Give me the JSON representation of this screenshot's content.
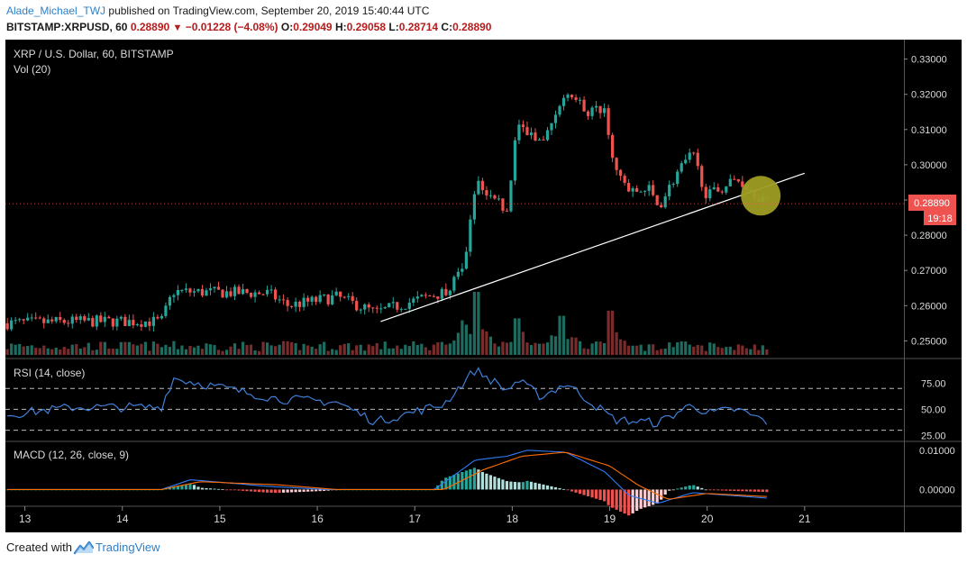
{
  "header": {
    "author": "Alade_Michael_TWJ",
    "published_text": "published on TradingView.com, September 20, 2019 15:40:44 UTC",
    "symbol": "BITSTAMP:XRPUSD, 60",
    "last": "0.28890",
    "change": "−0.01228 (−4.08%)",
    "o_label": "O:",
    "o": "0.29049",
    "h_label": "H:",
    "h": "0.29058",
    "l_label": "L:",
    "l": "0.28714",
    "c_label": "C:",
    "c": "0.28890"
  },
  "footer": {
    "created_with": "Created with",
    "brand": "TradingView"
  },
  "colors": {
    "background": "#000000",
    "up": "#26a69a",
    "down": "#ef5350",
    "vol_up": "#1e6b5f",
    "vol_down": "#7a2c2c",
    "rsi": "#3f7fd8",
    "macd": "#2e7cf6",
    "signal": "#ff6d00",
    "hist_up_strong": "#26a69a",
    "hist_up_weak": "#b2dfdb",
    "hist_down_strong": "#ef5350",
    "hist_down_weak": "#ffcdd2",
    "trendline": "#ffffff",
    "marker": "#9e9d24",
    "price_label": "#ef5350"
  },
  "chart_data": [
    {
      "type": "candlestick",
      "title": "XRP / U.S. Dollar, 60, BITSTAMP",
      "subtitle": "Vol (20)",
      "y_tick_labels": [
        "0.33000",
        "0.32000",
        "0.31000",
        "0.30000",
        "0.29000",
        "0.28000",
        "0.27000",
        "0.26000",
        "0.25000"
      ],
      "y_ticks": [
        0.33,
        0.32,
        0.31,
        0.3,
        0.29,
        0.28,
        0.27,
        0.26,
        0.25
      ],
      "ylim": [
        0.2455,
        0.3345
      ],
      "x_tick_labels": [
        "13",
        "14",
        "15",
        "16",
        "17",
        "18",
        "19",
        "20",
        "21"
      ],
      "x_ticks": [
        13,
        14,
        15,
        16,
        17,
        18,
        19,
        20,
        21
      ],
      "xlim": [
        12.8,
        22.0
      ],
      "last_price_label": "0.28890",
      "countdown_label": "19:18",
      "key_points": [
        {
          "x": 12.82,
          "close": 0.255
        },
        {
          "x": 13.5,
          "close": 0.2555
        },
        {
          "x": 14.4,
          "close": 0.2555
        },
        {
          "x": 14.52,
          "close": 0.264
        },
        {
          "x": 15.5,
          "close": 0.2635
        },
        {
          "x": 15.7,
          "close": 0.26
        },
        {
          "x": 16.2,
          "close": 0.2625
        },
        {
          "x": 16.6,
          "close": 0.258
        },
        {
          "x": 17.3,
          "close": 0.264
        },
        {
          "x": 17.5,
          "close": 0.27
        },
        {
          "x": 17.62,
          "close": 0.295
        },
        {
          "x": 17.95,
          "close": 0.287
        },
        {
          "x": 18.05,
          "close": 0.312
        },
        {
          "x": 18.3,
          "close": 0.305
        },
        {
          "x": 18.55,
          "close": 0.322
        },
        {
          "x": 18.75,
          "close": 0.315
        },
        {
          "x": 18.95,
          "close": 0.316
        },
        {
          "x": 19.05,
          "close": 0.299
        },
        {
          "x": 19.2,
          "close": 0.292
        },
        {
          "x": 19.4,
          "close": 0.293
        },
        {
          "x": 19.5,
          "close": 0.288
        },
        {
          "x": 19.7,
          "close": 0.298
        },
        {
          "x": 19.85,
          "close": 0.303
        },
        {
          "x": 20.0,
          "close": 0.291
        },
        {
          "x": 20.3,
          "close": 0.296
        },
        {
          "x": 20.45,
          "close": 0.293
        },
        {
          "x": 20.62,
          "close": 0.2889
        }
      ],
      "trendline": {
        "x1": 16.65,
        "y1": 0.2555,
        "x2": 21.0,
        "y2": 0.2976
      },
      "highlight_marker": {
        "x": 20.55,
        "y": 0.2912
      },
      "volume_spikes": [
        {
          "x": 17.48,
          "value": 0.55
        },
        {
          "x": 17.62,
          "value": 1.0
        },
        {
          "x": 18.05,
          "value": 0.58
        },
        {
          "x": 18.52,
          "value": 0.62
        },
        {
          "x": 19.02,
          "value": 0.7
        }
      ]
    },
    {
      "type": "line",
      "title": "RSI (14, close)",
      "y_tick_labels": [
        "75.00",
        "50.00",
        "25.00"
      ],
      "y_ticks": [
        75,
        50,
        25
      ],
      "ylim": [
        21,
        97
      ],
      "levels": [
        70,
        50,
        30
      ],
      "key_points": [
        {
          "x": 12.82,
          "y": 45
        },
        {
          "x": 13.5,
          "y": 52
        },
        {
          "x": 14.4,
          "y": 52
        },
        {
          "x": 14.52,
          "y": 80
        },
        {
          "x": 15.6,
          "y": 60
        },
        {
          "x": 16.2,
          "y": 57
        },
        {
          "x": 16.6,
          "y": 38
        },
        {
          "x": 17.3,
          "y": 55
        },
        {
          "x": 17.62,
          "y": 88
        },
        {
          "x": 17.95,
          "y": 68
        },
        {
          "x": 18.05,
          "y": 78
        },
        {
          "x": 18.3,
          "y": 62
        },
        {
          "x": 18.55,
          "y": 75
        },
        {
          "x": 19.05,
          "y": 40
        },
        {
          "x": 19.5,
          "y": 37
        },
        {
          "x": 19.85,
          "y": 55
        },
        {
          "x": 20.0,
          "y": 46
        },
        {
          "x": 20.3,
          "y": 50
        },
        {
          "x": 20.62,
          "y": 38
        }
      ]
    },
    {
      "type": "line",
      "title": "MACD (12, 26, close, 9)",
      "y_tick_labels": [
        "0.01000",
        "0.00000"
      ],
      "y_ticks": [
        0.01,
        0.0
      ],
      "ylim": [
        -0.0038,
        0.0118
      ],
      "series": [
        {
          "key": "macd",
          "points": [
            {
              "x": 12.82,
              "y": 0.0
            },
            {
              "x": 14.4,
              "y": 0.0
            },
            {
              "x": 14.7,
              "y": 0.0025
            },
            {
              "x": 15.5,
              "y": 0.0008
            },
            {
              "x": 16.1,
              "y": 0.0
            },
            {
              "x": 17.2,
              "y": 0.0
            },
            {
              "x": 17.62,
              "y": 0.0075
            },
            {
              "x": 17.95,
              "y": 0.0085
            },
            {
              "x": 18.15,
              "y": 0.01
            },
            {
              "x": 18.55,
              "y": 0.0095
            },
            {
              "x": 18.95,
              "y": 0.0045
            },
            {
              "x": 19.2,
              "y": -0.0015
            },
            {
              "x": 19.5,
              "y": -0.0035
            },
            {
              "x": 19.85,
              "y": -0.0008
            },
            {
              "x": 20.62,
              "y": -0.0022
            }
          ]
        },
        {
          "key": "signal",
          "points": [
            {
              "x": 12.82,
              "y": 0.0
            },
            {
              "x": 14.4,
              "y": 0.0
            },
            {
              "x": 14.8,
              "y": 0.002
            },
            {
              "x": 15.6,
              "y": 0.0012
            },
            {
              "x": 16.2,
              "y": 0.0
            },
            {
              "x": 17.3,
              "y": 0.0
            },
            {
              "x": 17.7,
              "y": 0.005
            },
            {
              "x": 18.1,
              "y": 0.0085
            },
            {
              "x": 18.55,
              "y": 0.0095
            },
            {
              "x": 19.0,
              "y": 0.006
            },
            {
              "x": 19.3,
              "y": 0.001
            },
            {
              "x": 19.6,
              "y": -0.0025
            },
            {
              "x": 20.0,
              "y": -0.001
            },
            {
              "x": 20.62,
              "y": -0.0018
            }
          ]
        }
      ]
    }
  ]
}
